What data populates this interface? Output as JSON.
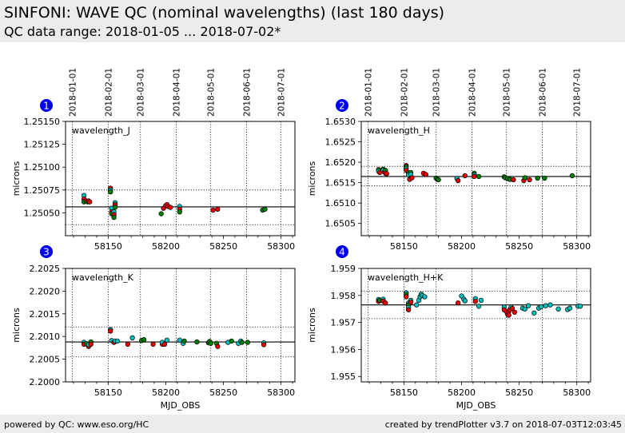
{
  "header": {
    "title": "SINFONI: WAVE QC (nominal wavelengths) (last 180 days)",
    "subtitle": "QC data range: 2018-01-05 ... 2018-07-02*"
  },
  "footer": {
    "left": "powered by QC: www.eso.org/HC",
    "right": "created by trendPlotter v3.7 on 2018-07-03T12:03:45"
  },
  "colors": {
    "badge": "#0000ee",
    "red": "#ee0000",
    "green": "#008000",
    "cyan": "#00bfbf"
  },
  "date_ticks": {
    "labels": [
      "2018-01-01",
      "2018-02-01",
      "2018-03-01",
      "2018-04-01",
      "2018-05-01",
      "2018-06-01",
      "2018-07-01"
    ],
    "mjd": [
      58119,
      58150,
      58178,
      58209,
      58239,
      58270,
      58300
    ]
  },
  "chart_data": [
    {
      "type": "scatter",
      "badge": "1",
      "label": "wavelength_J",
      "xlabel": "",
      "ylabel": "microns",
      "xlim": [
        58113,
        58312
      ],
      "ylim": [
        1.25025,
        1.2515
      ],
      "xticks": [
        58150,
        58200,
        58250,
        58300
      ],
      "xticklabels": [
        "58150",
        "58200",
        "58250",
        "58300"
      ],
      "yticks": [
        1.2505,
        1.25075,
        1.251,
        1.25125,
        1.2515
      ],
      "yticklabels": [
        "1.25050",
        "1.25075",
        "1.25100",
        "1.25125",
        "1.25150"
      ],
      "reference": 1.250565,
      "limits": [
        1.25037,
        1.25075
      ],
      "grid": true,
      "points": [
        [
          58129,
          1.25069,
          "cyan"
        ],
        [
          58129,
          1.25065,
          "red"
        ],
        [
          58129,
          1.25062,
          "green"
        ],
        [
          58131,
          1.25063,
          "red"
        ],
        [
          58132,
          1.25062,
          "green"
        ],
        [
          58133,
          1.25063,
          "red"
        ],
        [
          58134,
          1.25062,
          "red"
        ],
        [
          58152,
          1.25077,
          "red"
        ],
        [
          58152,
          1.25075,
          "cyan"
        ],
        [
          58152,
          1.25073,
          "green"
        ],
        [
          58153,
          1.25055,
          "cyan"
        ],
        [
          58153,
          1.25051,
          "red"
        ],
        [
          58153,
          1.25049,
          "green"
        ],
        [
          58155,
          1.25051,
          "cyan"
        ],
        [
          58155,
          1.25048,
          "red"
        ],
        [
          58155,
          1.25045,
          "green"
        ],
        [
          58156,
          1.25061,
          "cyan"
        ],
        [
          58156,
          1.25059,
          "red"
        ],
        [
          58156,
          1.25056,
          "green"
        ],
        [
          58196,
          1.25049,
          "green"
        ],
        [
          58198,
          1.25055,
          "red"
        ],
        [
          58200,
          1.25058,
          "red"
        ],
        [
          58201,
          1.25059,
          "red"
        ],
        [
          58202,
          1.25057,
          "red"
        ],
        [
          58204,
          1.25056,
          "red"
        ],
        [
          58212,
          1.25057,
          "cyan"
        ],
        [
          58212,
          1.25054,
          "red"
        ],
        [
          58212,
          1.25051,
          "green"
        ],
        [
          58241,
          1.25053,
          "red"
        ],
        [
          58245,
          1.25054,
          "red"
        ],
        [
          58284,
          1.25053,
          "green"
        ],
        [
          58286,
          1.25054,
          "green"
        ]
      ]
    },
    {
      "type": "scatter",
      "badge": "2",
      "label": "wavelength_H",
      "xlabel": "",
      "ylabel": "microns",
      "xlim": [
        58113,
        58312
      ],
      "ylim": [
        1.6502,
        1.653
      ],
      "xticks": [
        58150,
        58200,
        58250,
        58300
      ],
      "xticklabels": [
        "58150",
        "58200",
        "58250",
        "58300"
      ],
      "yticks": [
        1.6505,
        1.651,
        1.6515,
        1.652,
        1.6525,
        1.653
      ],
      "yticklabels": [
        "1.6505",
        "1.6510",
        "1.6515",
        "1.6520",
        "1.6525",
        "1.6530"
      ],
      "reference": 1.65165,
      "limits": [
        1.65142,
        1.6519
      ],
      "grid": true,
      "points": [
        [
          58128,
          1.65182,
          "green"
        ],
        [
          58128,
          1.65178,
          "cyan"
        ],
        [
          58129,
          1.65175,
          "red"
        ],
        [
          58132,
          1.65183,
          "green"
        ],
        [
          58132,
          1.6518,
          "cyan"
        ],
        [
          58133,
          1.65176,
          "red"
        ],
        [
          58134,
          1.6518,
          "green"
        ],
        [
          58134,
          1.65173,
          "red"
        ],
        [
          58135,
          1.65172,
          "red"
        ],
        [
          58152,
          1.65192,
          "red"
        ],
        [
          58152,
          1.65189,
          "green"
        ],
        [
          58152,
          1.65184,
          "cyan"
        ],
        [
          58152,
          1.6518,
          "red"
        ],
        [
          58154,
          1.65174,
          "green"
        ],
        [
          58154,
          1.65169,
          "cyan"
        ],
        [
          58155,
          1.65158,
          "red"
        ],
        [
          58156,
          1.65175,
          "green"
        ],
        [
          58156,
          1.6517,
          "cyan"
        ],
        [
          58157,
          1.65162,
          "red"
        ],
        [
          58167,
          1.65173,
          "red"
        ],
        [
          58169,
          1.6517,
          "red"
        ],
        [
          58178,
          1.65161,
          "green"
        ],
        [
          58179,
          1.65158,
          "green"
        ],
        [
          58180,
          1.65157,
          "green"
        ],
        [
          58196,
          1.6516,
          "cyan"
        ],
        [
          58197,
          1.65155,
          "red"
        ],
        [
          58203,
          1.65167,
          "red"
        ],
        [
          58211,
          1.65173,
          "green"
        ],
        [
          58211,
          1.65169,
          "cyan"
        ],
        [
          58211,
          1.65165,
          "red"
        ],
        [
          58215,
          1.65165,
          "green"
        ],
        [
          58237,
          1.65164,
          "green"
        ],
        [
          58238,
          1.65162,
          "green"
        ],
        [
          58240,
          1.6516,
          "green"
        ],
        [
          58242,
          1.65158,
          "green"
        ],
        [
          58245,
          1.65157,
          "red"
        ],
        [
          58254,
          1.65155,
          "red"
        ],
        [
          58255,
          1.65162,
          "green"
        ],
        [
          58259,
          1.65157,
          "red"
        ],
        [
          58266,
          1.65161,
          "green"
        ],
        [
          58272,
          1.65161,
          "green"
        ],
        [
          58296,
          1.65167,
          "green"
        ]
      ]
    },
    {
      "type": "scatter",
      "badge": "3",
      "label": "wavelength_K",
      "xlabel": "MJD_OBS",
      "ylabel": "microns",
      "xlim": [
        58113,
        58312
      ],
      "ylim": [
        2.2,
        2.2025
      ],
      "xticks": [
        58150,
        58200,
        58250,
        58300
      ],
      "xticklabels": [
        "58150",
        "58200",
        "58250",
        "58300"
      ],
      "yticks": [
        2.2,
        2.2005,
        2.201,
        2.2015,
        2.202,
        2.2025
      ],
      "yticklabels": [
        "2.2000",
        "2.2005",
        "2.2010",
        "2.2015",
        "2.2020",
        "2.2025"
      ],
      "reference": 2.20088,
      "limits": [
        2.20055,
        2.20121
      ],
      "grid": true,
      "points": [
        [
          58129,
          2.20087,
          "cyan"
        ],
        [
          58129,
          2.20083,
          "red"
        ],
        [
          58131,
          2.20084,
          "green"
        ],
        [
          58133,
          2.20078,
          "red"
        ],
        [
          58133,
          2.20082,
          "cyan"
        ],
        [
          58135,
          2.20088,
          "green"
        ],
        [
          58135,
          2.20083,
          "red"
        ],
        [
          58152,
          2.20115,
          "cyan"
        ],
        [
          58152,
          2.20112,
          "red"
        ],
        [
          58153,
          2.20091,
          "cyan"
        ],
        [
          58155,
          2.20087,
          "red"
        ],
        [
          58156,
          2.2009,
          "cyan"
        ],
        [
          58158,
          2.2009,
          "cyan"
        ],
        [
          58167,
          2.20083,
          "red"
        ],
        [
          58171,
          2.20097,
          "cyan"
        ],
        [
          58179,
          2.20091,
          "green"
        ],
        [
          58181,
          2.20093,
          "green"
        ],
        [
          58189,
          2.20083,
          "red"
        ],
        [
          58197,
          2.20083,
          "red"
        ],
        [
          58197,
          2.20087,
          "cyan"
        ],
        [
          58199,
          2.20083,
          "red"
        ],
        [
          58201,
          2.20092,
          "cyan"
        ],
        [
          58212,
          2.20092,
          "cyan"
        ],
        [
          58215,
          2.20085,
          "cyan"
        ],
        [
          58216,
          2.2009,
          "green"
        ],
        [
          58227,
          2.20088,
          "green"
        ],
        [
          58237,
          2.20086,
          "green"
        ],
        [
          58238,
          2.20089,
          "green"
        ],
        [
          58239,
          2.20085,
          "green"
        ],
        [
          58244,
          2.20085,
          "green"
        ],
        [
          58245,
          2.20078,
          "red"
        ],
        [
          58254,
          2.20087,
          "cyan"
        ],
        [
          58257,
          2.2009,
          "green"
        ],
        [
          58263,
          2.20085,
          "cyan"
        ],
        [
          58265,
          2.2009,
          "cyan"
        ],
        [
          58266,
          2.20087,
          "green"
        ],
        [
          58271,
          2.20087,
          "green"
        ],
        [
          58285,
          2.20086,
          "cyan"
        ],
        [
          58285,
          2.20082,
          "red"
        ]
      ]
    },
    {
      "type": "scatter",
      "badge": "4",
      "label": "wavelength_H+K",
      "xlabel": "MJD_OBS",
      "ylabel": "microns",
      "xlim": [
        58113,
        58312
      ],
      "ylim": [
        1.9548,
        1.959
      ],
      "xticks": [
        58150,
        58200,
        58250,
        58300
      ],
      "xticklabels": [
        "58150",
        "58200",
        "58250",
        "58300"
      ],
      "yticks": [
        1.955,
        1.956,
        1.957,
        1.958,
        1.959
      ],
      "yticklabels": [
        "1.955",
        "1.956",
        "1.957",
        "1.958",
        "1.959"
      ],
      "reference": 1.95765,
      "limits": [
        1.95714,
        1.95816
      ],
      "grid": true,
      "points": [
        [
          58128,
          1.95785,
          "cyan"
        ],
        [
          58128,
          1.95778,
          "red"
        ],
        [
          58129,
          1.95782,
          "green"
        ],
        [
          58132,
          1.95786,
          "cyan"
        ],
        [
          58132,
          1.95779,
          "red"
        ],
        [
          58134,
          1.95772,
          "red"
        ],
        [
          58152,
          1.9581,
          "cyan"
        ],
        [
          58152,
          1.95803,
          "green"
        ],
        [
          58152,
          1.95795,
          "red"
        ],
        [
          58154,
          1.95772,
          "cyan"
        ],
        [
          58154,
          1.95765,
          "green"
        ],
        [
          58154,
          1.95755,
          "cyan"
        ],
        [
          58154,
          1.95747,
          "red"
        ],
        [
          58156,
          1.95782,
          "cyan"
        ],
        [
          58156,
          1.95775,
          "red"
        ],
        [
          58161,
          1.95765,
          "cyan"
        ],
        [
          58163,
          1.95782,
          "cyan"
        ],
        [
          58164,
          1.95795,
          "cyan"
        ],
        [
          58165,
          1.95805,
          "cyan"
        ],
        [
          58166,
          1.958,
          "cyan"
        ],
        [
          58168,
          1.95795,
          "cyan"
        ],
        [
          58197,
          1.95772,
          "red"
        ],
        [
          58200,
          1.95798,
          "cyan"
        ],
        [
          58202,
          1.95786,
          "cyan"
        ],
        [
          58203,
          1.9578,
          "cyan"
        ],
        [
          58212,
          1.95788,
          "cyan"
        ],
        [
          58212,
          1.95778,
          "red"
        ],
        [
          58215,
          1.9576,
          "cyan"
        ],
        [
          58217,
          1.95782,
          "cyan"
        ],
        [
          58237,
          1.95757,
          "cyan"
        ],
        [
          58237,
          1.95747,
          "red"
        ],
        [
          58239,
          1.9574,
          "red"
        ],
        [
          58240,
          1.9573,
          "red"
        ],
        [
          58241,
          1.9574,
          "red"
        ],
        [
          58241,
          1.95727,
          "red"
        ],
        [
          58242,
          1.95748,
          "red"
        ],
        [
          58243,
          1.95757,
          "cyan"
        ],
        [
          58244,
          1.95752,
          "red"
        ],
        [
          58246,
          1.95738,
          "red"
        ],
        [
          58253,
          1.95753,
          "cyan"
        ],
        [
          58255,
          1.9575,
          "cyan"
        ],
        [
          58258,
          1.95762,
          "cyan"
        ],
        [
          58263,
          1.95735,
          "cyan"
        ],
        [
          58267,
          1.95753,
          "cyan"
        ],
        [
          58269,
          1.95758,
          "cyan"
        ],
        [
          58273,
          1.95762,
          "cyan"
        ],
        [
          58277,
          1.95765,
          "cyan"
        ],
        [
          58284,
          1.9575,
          "cyan"
        ],
        [
          58292,
          1.95748,
          "cyan"
        ],
        [
          58294,
          1.95753,
          "cyan"
        ],
        [
          58301,
          1.9576,
          "cyan"
        ],
        [
          58303,
          1.9576,
          "cyan"
        ]
      ]
    }
  ]
}
